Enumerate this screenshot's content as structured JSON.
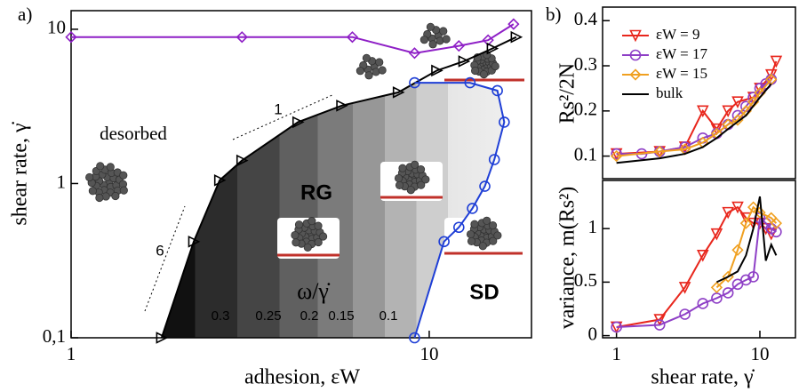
{
  "chart_data": [
    {
      "type": "line",
      "xscale": "log",
      "yscale": "log",
      "xlabel": "adhesion, εW",
      "ylabel": "shear rate, γ̇",
      "xlim": [
        1,
        19.3
      ],
      "ylim": [
        0.1,
        13.2
      ],
      "xticks": [
        1,
        10
      ],
      "yticks": [
        {
          "value": 0.1,
          "label": "0,1"
        },
        1,
        10
      ],
      "annotations": [
        "a)",
        "desorbed",
        "RG",
        "SD",
        "ω/γ̇",
        "1",
        "6"
      ],
      "contour_levels": [
        0.3,
        0.25,
        0.2,
        0.15,
        0.1
      ],
      "series": [
        {
          "color": "#8e1fc6",
          "marker": "diamond",
          "x": [
            1,
            3.0,
            6.1,
            9.1,
            12.1,
            14.6,
            17.2
          ],
          "values": [
            8.9,
            8.9,
            8.9,
            7.0,
            7.8,
            8.5,
            10.8
          ]
        },
        {
          "color": "#000000",
          "marker": "triangle-right",
          "x": [
            1.79,
            2.2,
            2.6,
            3.0,
            4.3,
            5.7,
            8.2,
            10.5,
            12.5,
            15,
            17.5
          ],
          "values": [
            0.1,
            0.42,
            1.05,
            1.41,
            2.5,
            3.2,
            3.9,
            5.4,
            6.2,
            7.5,
            8.9
          ]
        },
        {
          "color": "#1f3fd6",
          "marker": "circle",
          "x": [
            9.1,
            13,
            15.5,
            16.2,
            15.2,
            14.3,
            13.2,
            12.1,
            11,
            9.1
          ],
          "values": [
            4.5,
            4.5,
            4.0,
            2.5,
            1.43,
            0.96,
            0.69,
            0.52,
            0.42,
            0.1
          ]
        }
      ]
    },
    {
      "type": "line",
      "xscale": "log",
      "ylabel": "Rs²/2N",
      "annotations": [
        "b)"
      ],
      "xlim": [
        0.8,
        17.7
      ],
      "ylim": [
        0.05,
        0.43
      ],
      "yticks": [
        0.1,
        0.2,
        0.3,
        0.4
      ],
      "legend": "upper left",
      "series": [
        {
          "name": "εW = 9",
          "color": "#e8261c",
          "marker": "triangle-down",
          "x": [
            1,
            2,
            3,
            4,
            5,
            6,
            7,
            9,
            10,
            12,
            13
          ],
          "values": [
            0.105,
            0.11,
            0.12,
            0.2,
            0.16,
            0.2,
            0.22,
            0.23,
            0.25,
            0.28,
            0.31
          ]
        },
        {
          "name": "εW = 17",
          "color": "#8e3fc6",
          "marker": "circle",
          "x": [
            1,
            1.5,
            2,
            3,
            4,
            5,
            6,
            7,
            8,
            9,
            10,
            11,
            12
          ],
          "values": [
            0.105,
            0.105,
            0.11,
            0.12,
            0.14,
            0.15,
            0.17,
            0.19,
            0.21,
            0.23,
            0.25,
            0.26,
            0.27
          ]
        },
        {
          "name": "εW = 15",
          "color": "#f0a020",
          "marker": "diamond",
          "x": [
            1,
            2,
            3,
            4,
            5,
            6,
            7,
            8,
            9,
            10,
            12
          ],
          "values": [
            0.1,
            0.11,
            0.115,
            0.13,
            0.15,
            0.17,
            0.18,
            0.2,
            0.22,
            0.24,
            0.27
          ]
        },
        {
          "name": "bulk",
          "color": "#000000",
          "marker": "none",
          "x": [
            1,
            2,
            3,
            4,
            5,
            6,
            8,
            10,
            12
          ],
          "values": [
            0.085,
            0.095,
            0.105,
            0.12,
            0.14,
            0.16,
            0.19,
            0.23,
            0.26
          ]
        }
      ]
    },
    {
      "type": "line",
      "xscale": "log",
      "xlabel": "shear rate, γ̇",
      "ylabel": "variance, m(Rs²)",
      "xlim": [
        0.8,
        17.7
      ],
      "ylim": [
        -0.02,
        1.45
      ],
      "xticks": [
        1,
        10
      ],
      "yticks": [
        0,
        0.5,
        1
      ],
      "series": [
        {
          "color": "#e8261c",
          "marker": "triangle-down",
          "x": [
            1,
            2,
            3,
            4,
            5,
            6,
            7,
            8,
            9,
            10,
            11,
            12
          ],
          "values": [
            0.08,
            0.15,
            0.45,
            0.75,
            0.95,
            1.15,
            1.2,
            1.1,
            1.05,
            1.05,
            1.0,
            0.95
          ]
        },
        {
          "color": "#8e3fc6",
          "marker": "circle",
          "x": [
            1,
            2,
            3,
            4,
            5,
            6,
            7,
            8,
            9,
            10,
            11,
            12,
            13
          ],
          "values": [
            0.08,
            0.1,
            0.2,
            0.3,
            0.35,
            0.4,
            0.48,
            0.52,
            0.55,
            1.1,
            1.05,
            1.0,
            0.97
          ]
        },
        {
          "color": "#f0a020",
          "marker": "diamond",
          "x": [
            5,
            6,
            7,
            8,
            9,
            10,
            12,
            13
          ],
          "values": [
            0.45,
            0.55,
            0.8,
            1.05,
            1.2,
            1.15,
            1.1,
            1.05
          ]
        },
        {
          "color": "#000000",
          "marker": "none",
          "x": [
            5,
            6,
            7,
            8,
            9,
            10,
            11,
            12,
            13
          ],
          "values": [
            0.5,
            0.55,
            0.6,
            0.75,
            1.0,
            1.3,
            0.7,
            0.85,
            0.75
          ]
        }
      ]
    }
  ]
}
